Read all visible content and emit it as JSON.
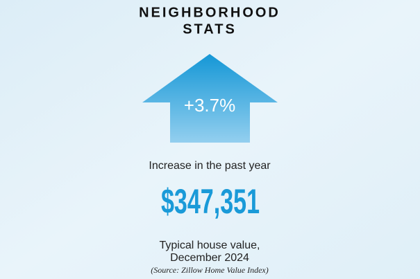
{
  "header": {
    "title_lines": [
      "NEIGHBORHOOD",
      "STATS"
    ]
  },
  "change": {
    "value": "+3.7%",
    "caption": "Increase in the past year"
  },
  "house_value": {
    "value": "$347,351",
    "caption_lines": [
      "Typical house value,",
      "December 2024"
    ],
    "source": "(Source: Zillow Home Value Index)"
  }
}
